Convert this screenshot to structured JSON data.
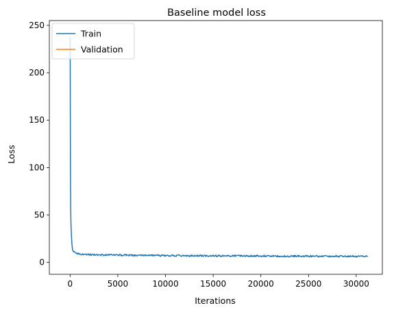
{
  "chart_data": {
    "type": "line",
    "title": "Baseline model loss",
    "xlabel": "Iterations",
    "ylabel": "Loss",
    "xlim": [
      -2180,
      32740
    ],
    "ylim": [
      -12.5,
      255
    ],
    "xticks": [
      0,
      5000,
      10000,
      15000,
      20000,
      25000,
      30000
    ],
    "xtick_labels": [
      "0",
      "5000",
      "10000",
      "15000",
      "20000",
      "25000",
      "30000"
    ],
    "yticks": [
      0,
      50,
      100,
      150,
      200,
      250
    ],
    "ytick_labels": [
      "0",
      "50",
      "100",
      "150",
      "200",
      "250"
    ],
    "grid": false,
    "legend": {
      "position": "top-left",
      "entries": [
        "Train",
        "Validation"
      ]
    },
    "series": [
      {
        "name": "Train",
        "color": "#1f77b4",
        "x": [
          0,
          10,
          20,
          30,
          40,
          60,
          80,
          100,
          120,
          150,
          200,
          250,
          300,
          400,
          500,
          700,
          1000,
          1500,
          2000,
          3000,
          4000,
          5000,
          6000,
          7000,
          8000,
          9000,
          10000,
          11000,
          12000,
          13000,
          14000,
          15000,
          16000,
          17000,
          18000,
          19000,
          20000,
          21000,
          22000,
          23000,
          24000,
          25000,
          26000,
          27000,
          28000,
          29000,
          30000,
          31000,
          31200
        ],
        "y": [
          238,
          210,
          160,
          115,
          85,
          60,
          45,
          38,
          33,
          25,
          18,
          14,
          12,
          11,
          10.5,
          9.5,
          9,
          8.6,
          8.3,
          8.0,
          7.9,
          7.8,
          7.6,
          7.5,
          7.4,
          7.3,
          7.3,
          7.2,
          7.2,
          7.1,
          7.0,
          7.0,
          6.9,
          6.9,
          6.8,
          6.8,
          6.7,
          6.7,
          6.7,
          6.6,
          6.6,
          6.6,
          6.5,
          6.5,
          6.5,
          6.5,
          6.4,
          6.4,
          6.4
        ]
      },
      {
        "name": "Validation",
        "color": "#ff7f0e",
        "x": [],
        "y": []
      }
    ]
  }
}
